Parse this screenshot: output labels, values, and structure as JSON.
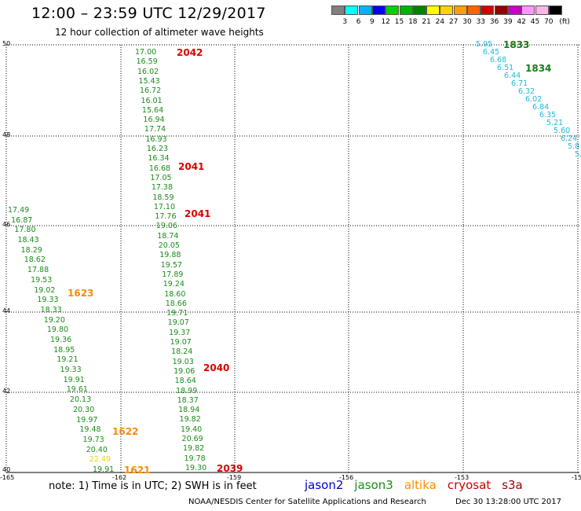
{
  "header": {
    "title": "12:00 – 23:59 UTC 12/29/2017",
    "subtitle": "12 hour collection of altimeter wave heights"
  },
  "colorbar": {
    "unit": "(ft)",
    "labels": [
      "3",
      "6",
      "9",
      "12",
      "15",
      "18",
      "21",
      "24",
      "27",
      "30",
      "33",
      "36",
      "39",
      "42",
      "45",
      "70"
    ],
    "colors": [
      "#808080",
      "#00ffff",
      "#00b4ff",
      "#0000ff",
      "#00d200",
      "#00b400",
      "#008200",
      "#ffff00",
      "#ffd200",
      "#ffa000",
      "#ff6400",
      "#d20000",
      "#960000",
      "#c800c8",
      "#ff96ff",
      "#ffb4e6",
      "#000000"
    ]
  },
  "map": {
    "lat_labels": [
      "50",
      "48",
      "46",
      "44",
      "42",
      "40"
    ],
    "lon_labels": [
      "-165",
      "-162",
      "-159",
      "-156",
      "-153",
      "-15"
    ],
    "grid": true
  },
  "passes": [
    {
      "id": "pass-a",
      "color": "green",
      "values": [
        "17.00",
        "16.59",
        "16.02",
        "15.43",
        "16.72",
        "16.01",
        "15.64",
        "16.94",
        "17.74",
        "16.93",
        "16.23",
        "16.34",
        "16.68",
        "17.05",
        "17.38",
        "18.59",
        "17.10",
        "17.76",
        "19.06",
        "18.74",
        "20.05",
        "19.88",
        "19.57",
        "17.89",
        "19.24",
        "18.60",
        "18.66",
        "19.71",
        "19.07",
        "19.37",
        "19.07",
        "18.24",
        "19.03",
        "19.06",
        "18.64",
        "18.99",
        "18.37",
        "18.94",
        "19.82",
        "19.40",
        "20.69",
        "19.82",
        "19.78",
        "19.30"
      ]
    },
    {
      "id": "pass-b",
      "color": "green",
      "values": [
        "17.49",
        "16.87",
        "17.80",
        "18.43",
        "18.29",
        "18.62",
        "17.88",
        "19.53",
        "19.02",
        "19.33",
        "18.33",
        "19.20",
        "19.80",
        "19.36",
        "18.95",
        "19.21",
        "19.33",
        "19.91",
        "19.61",
        "20.13",
        "20.30",
        "19.97",
        "19.48",
        "19.73",
        "20.40",
        "22.49",
        "19.91"
      ]
    },
    {
      "id": "pass-c",
      "color": "cyan",
      "values": [
        "5.95",
        "6.45",
        "6.68",
        "6.51",
        "6.44",
        "6.71",
        "6.32",
        "6.02",
        "6.84",
        "6.35",
        "5.21",
        "5.60",
        "6.24",
        "5.8",
        "5."
      ]
    }
  ],
  "times": [
    {
      "label": "2042",
      "color": "red"
    },
    {
      "label": "2041",
      "color": "red"
    },
    {
      "label": "2041",
      "color": "red"
    },
    {
      "label": "2040",
      "color": "red"
    },
    {
      "label": "2039",
      "color": "red"
    },
    {
      "label": "1623",
      "color": "orange"
    },
    {
      "label": "1622",
      "color": "orange"
    },
    {
      "label": "1621",
      "color": "orange"
    },
    {
      "label": "1833",
      "color": "green"
    },
    {
      "label": "1834",
      "color": "green"
    }
  ],
  "footer": {
    "note": "note: 1) Time is in UTC; 2) SWH is in feet",
    "legend": [
      {
        "label": "jason2",
        "color": "#0000cc"
      },
      {
        "label": "jason3",
        "color": "#1a8c1a"
      },
      {
        "label": "altika",
        "color": "#ff8c00"
      },
      {
        "label": "cryosat",
        "color": "#cc0000"
      },
      {
        "label": "s3a",
        "color": "#990000"
      }
    ],
    "credit": "NOAA/NESDIS Center for Satellite Applications and Research",
    "date": "Dec 30 13:28:00 UTC 2017"
  }
}
